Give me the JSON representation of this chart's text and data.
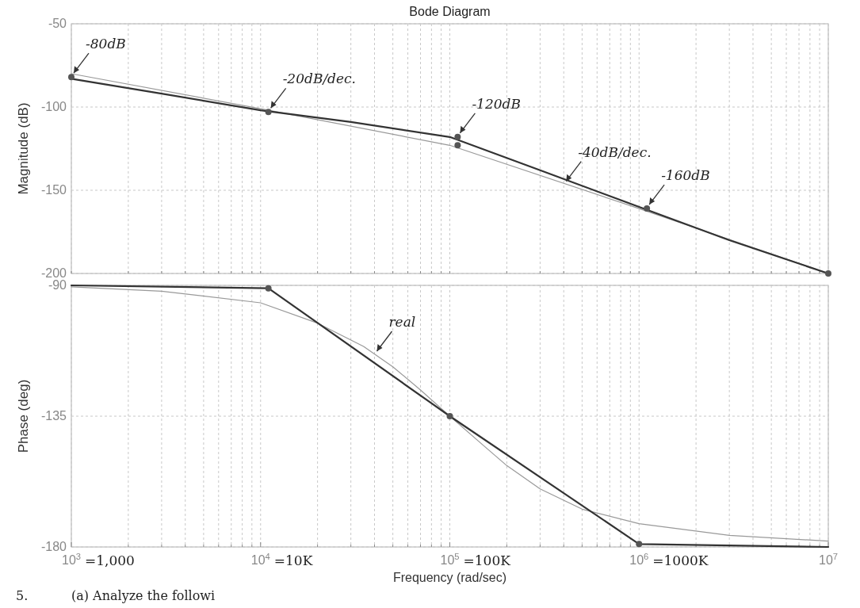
{
  "chart_data": [
    {
      "type": "line",
      "title": "Bode Diagram",
      "ylabel": "Magnitude (dB)",
      "log": "x",
      "grid": true,
      "tick_labels": "y",
      "line_style": "solid",
      "xlim": [
        1000,
        10000000
      ],
      "xticks": [
        {
          "value": 1000,
          "label": null
        },
        {
          "value": 2000,
          "label": null
        },
        {
          "value": 3000,
          "label": null
        },
        {
          "value": 4000,
          "label": null
        },
        {
          "value": 5000,
          "label": null
        },
        {
          "value": 6000,
          "label": null
        },
        {
          "value": 7000,
          "label": null
        },
        {
          "value": 8000,
          "label": null
        },
        {
          "value": 9000,
          "label": null
        },
        {
          "value": 10000,
          "label": null
        },
        {
          "value": 20000,
          "label": null
        },
        {
          "value": 30000,
          "label": null
        },
        {
          "value": 40000,
          "label": null
        },
        {
          "value": 50000,
          "label": null
        },
        {
          "value": 60000,
          "label": null
        },
        {
          "value": 70000,
          "label": null
        },
        {
          "value": 80000,
          "label": null
        },
        {
          "value": 90000,
          "label": null
        },
        {
          "value": 100000,
          "label": null
        },
        {
          "value": 200000,
          "label": null
        },
        {
          "value": 300000,
          "label": null
        },
        {
          "value": 400000,
          "label": null
        },
        {
          "value": 500000,
          "label": null
        },
        {
          "value": 600000,
          "label": null
        },
        {
          "value": 700000,
          "label": null
        },
        {
          "value": 800000,
          "label": null
        },
        {
          "value": 900000,
          "label": null
        },
        {
          "value": 1000000,
          "label": null
        },
        {
          "value": 2000000,
          "label": null
        },
        {
          "value": 3000000,
          "label": null
        },
        {
          "value": 4000000,
          "label": null
        },
        {
          "value": 5000000,
          "label": null
        },
        {
          "value": 6000000,
          "label": null
        },
        {
          "value": 7000000,
          "label": null
        },
        {
          "value": 8000000,
          "label": null
        },
        {
          "value": 9000000,
          "label": null
        },
        {
          "value": 10000000,
          "label": null
        }
      ],
      "ylim": [
        -200,
        -50
      ],
      "yticks": [
        -200,
        -150,
        -100,
        -50
      ],
      "series": [
        {
          "type": "line",
          "color": "#999999",
          "x": [
            1000,
            10000,
            100000,
            1000000,
            10000000
          ],
          "values": [
            -80,
            -101,
            -123,
            -161,
            -200
          ]
        },
        {
          "type": "line",
          "color": "#333333",
          "x": [
            1000,
            3000,
            10000,
            30000,
            100000,
            300000,
            1000000,
            3000000,
            10000000
          ],
          "values": [
            -83,
            -92,
            -102,
            -109,
            -118,
            -138,
            -160,
            -180,
            -200
          ]
        },
        {
          "type": "scatter",
          "marker": "circle",
          "color": "#555555",
          "x": [
            1000,
            11000,
            110000,
            110000,
            1100000,
            10000000
          ],
          "values": [
            -82,
            -103,
            -118,
            -123,
            -161,
            -200
          ]
        }
      ],
      "annotations": [
        {
          "text": "-80dB",
          "x": 1000,
          "y": -82
        },
        {
          "text": "-20dB/dec.",
          "x": 11000,
          "y": -103
        },
        {
          "text": "-120dB",
          "x": 110000,
          "y": -118
        },
        {
          "text": "-40dB/dec.",
          "x": 400000,
          "y": -147
        },
        {
          "text": "-160dB",
          "x": 1100000,
          "y": -161
        }
      ]
    },
    {
      "type": "line",
      "xlabel": "Frequency  (rad/sec)",
      "ylabel": "Phase (deg)",
      "log": "x",
      "grid": true,
      "line_style": "solid",
      "xlim": [
        1000,
        10000000
      ],
      "xticks": [
        {
          "value": 1000,
          "label": "10$^{3}$"
        },
        {
          "value": 2000,
          "label": null
        },
        {
          "value": 3000,
          "label": null
        },
        {
          "value": 4000,
          "label": null
        },
        {
          "value": 5000,
          "label": null
        },
        {
          "value": 6000,
          "label": null
        },
        {
          "value": 7000,
          "label": null
        },
        {
          "value": 8000,
          "label": null
        },
        {
          "value": 9000,
          "label": null
        },
        {
          "value": 10000,
          "label": "10$^{4}$"
        },
        {
          "value": 20000,
          "label": null
        },
        {
          "value": 30000,
          "label": null
        },
        {
          "value": 40000,
          "label": null
        },
        {
          "value": 50000,
          "label": null
        },
        {
          "value": 60000,
          "label": null
        },
        {
          "value": 70000,
          "label": null
        },
        {
          "value": 80000,
          "label": null
        },
        {
          "value": 90000,
          "label": null
        },
        {
          "value": 100000,
          "label": "10$^{5}$"
        },
        {
          "value": 200000,
          "label": null
        },
        {
          "value": 300000,
          "label": null
        },
        {
          "value": 400000,
          "label": null
        },
        {
          "value": 500000,
          "label": null
        },
        {
          "value": 600000,
          "label": null
        },
        {
          "value": 700000,
          "label": null
        },
        {
          "value": 800000,
          "label": null
        },
        {
          "value": 900000,
          "label": null
        },
        {
          "value": 1000000,
          "label": "10$^{6}$"
        },
        {
          "value": 2000000,
          "label": null
        },
        {
          "value": 3000000,
          "label": null
        },
        {
          "value": 4000000,
          "label": null
        },
        {
          "value": 5000000,
          "label": null
        },
        {
          "value": 6000000,
          "label": null
        },
        {
          "value": 7000000,
          "label": null
        },
        {
          "value": 8000000,
          "label": null
        },
        {
          "value": 9000000,
          "label": null
        },
        {
          "value": 10000000,
          "label": "10$^{7}$"
        }
      ],
      "ylim": [
        -180,
        -90
      ],
      "yticks": [
        -180,
        -135,
        -90
      ],
      "series": [
        {
          "type": "line",
          "color": "#999999",
          "x": [
            1000,
            3000,
            10000,
            20000,
            35000,
            50000,
            70000,
            100000,
            150000,
            200000,
            300000,
            500000,
            1000000,
            3000000,
            10000000
          ],
          "values": [
            -90.5,
            -92,
            -96,
            -103,
            -111,
            -118,
            -126,
            -135,
            -145,
            -152,
            -160,
            -167,
            -172,
            -176,
            -178
          ]
        },
        {
          "type": "line",
          "color": "#333333",
          "x": [
            1000,
            11000,
            100000,
            1000000,
            10000000
          ],
          "values": [
            -90,
            -91,
            -135,
            -179,
            -180
          ]
        },
        {
          "type": "scatter",
          "marker": "circle",
          "color": "#555555",
          "x": [
            11000,
            100000,
            1000000
          ],
          "values": [
            -91,
            -135,
            -179
          ]
        }
      ],
      "annotations": [
        {
          "text": "real",
          "x": 40000,
          "y": -114
        },
        "=1,000",
        "=10K",
        "=100K",
        "=1000K",
        "5.",
        "(a) Analyze the followi"
      ]
    }
  ]
}
